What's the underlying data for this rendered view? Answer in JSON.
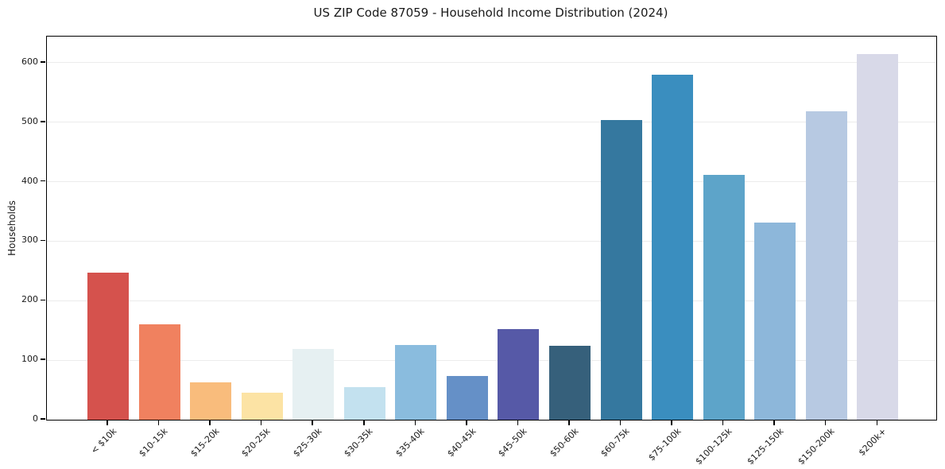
{
  "chart_data": {
    "type": "bar",
    "title": "US ZIP Code 87059 - Household Income Distribution (2024)",
    "xlabel": "",
    "ylabel": "Households",
    "categories": [
      "< $10k",
      "$10-15k",
      "$15-20k",
      "$20-25k",
      "$25-30k",
      "$30-35k",
      "$35-40k",
      "$40-45k",
      "$45-50k",
      "$50-60k",
      "$60-75k",
      "$75-100k",
      "$100-125k",
      "$125-150k",
      "$150-200k",
      "$200k+"
    ],
    "values": [
      247,
      160,
      63,
      45,
      119,
      55,
      125,
      74,
      152,
      124,
      504,
      580,
      411,
      331,
      518,
      615
    ],
    "bar_colors": [
      "#d5524d",
      "#f0815f",
      "#f9bc7c",
      "#fce3a4",
      "#e6f0f2",
      "#c3e1ef",
      "#8abcde",
      "#6590c7",
      "#5659a7",
      "#36607b",
      "#35789f",
      "#3a8ebf",
      "#5da4c9",
      "#8db7da",
      "#b7c9e2",
      "#d8d9e8"
    ],
    "yticks": [
      0,
      100,
      200,
      300,
      400,
      500,
      600
    ],
    "ylim": [
      0,
      644
    ],
    "grid": "horizontal",
    "legend": "none",
    "grid_color": "#ececec",
    "axis_color": "#000000",
    "text_color": "#1a1a1a",
    "background": "#ffffff"
  }
}
